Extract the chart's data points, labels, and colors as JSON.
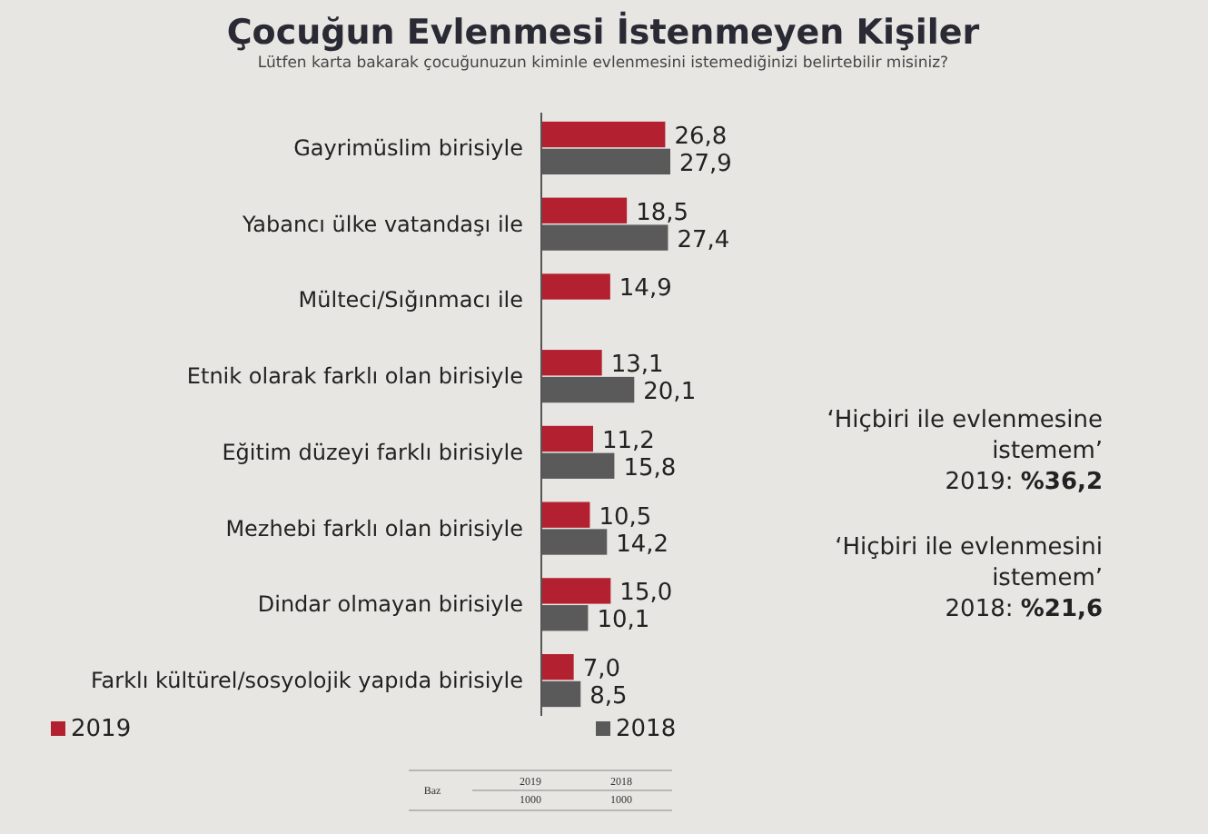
{
  "chart_data": {
    "type": "bar",
    "orientation": "horizontal",
    "title": "Çocuğun Evlenmesi İstenmeyen Kişiler",
    "subtitle": "Lütfen karta bakarak çocuğunuzun kiminle evlenmesini istemediğinizi belirtebilir misiniz?",
    "categories": [
      "Gayrimüslim birisiyle",
      "Yabancı ülke vatandaşı ile",
      "Mülteci/Sığınmacı ile",
      "Etnik olarak farklı olan birisiyle",
      "Eğitim düzeyi farklı birisiyle",
      "Mezhebi farklı olan birisiyle",
      "Dindar olmayan birisiyle",
      "Farklı kültürel/sosyolojik yapıda birisiyle"
    ],
    "series": [
      {
        "name": "2019",
        "color": "#b3202f",
        "values": [
          26.8,
          18.5,
          14.9,
          13.1,
          11.2,
          10.5,
          15.0,
          7.0
        ],
        "value_labels": [
          "26,8",
          "18,5",
          "14,9",
          "13,1",
          "11,2",
          "10,5",
          "15,0",
          "7,0"
        ]
      },
      {
        "name": "2018",
        "color": "#5b5a5a",
        "values": [
          27.9,
          27.4,
          null,
          20.1,
          15.8,
          14.2,
          10.1,
          8.5
        ],
        "value_labels": [
          "27,9",
          "27,4",
          null,
          "20,1",
          "15,8",
          "14,2",
          "10,1",
          "8,5"
        ]
      }
    ],
    "legend": "bottom",
    "annotations": [
      "‘Hiçbiri ile evlenmesine\nistemem’\n2019: %36,2",
      "‘Hiçbiri ile evlenmesini\nistemem’\n2018: %21,6",
      "Baz",
      "2019",
      "2018",
      "1000",
      "1000"
    ]
  }
}
